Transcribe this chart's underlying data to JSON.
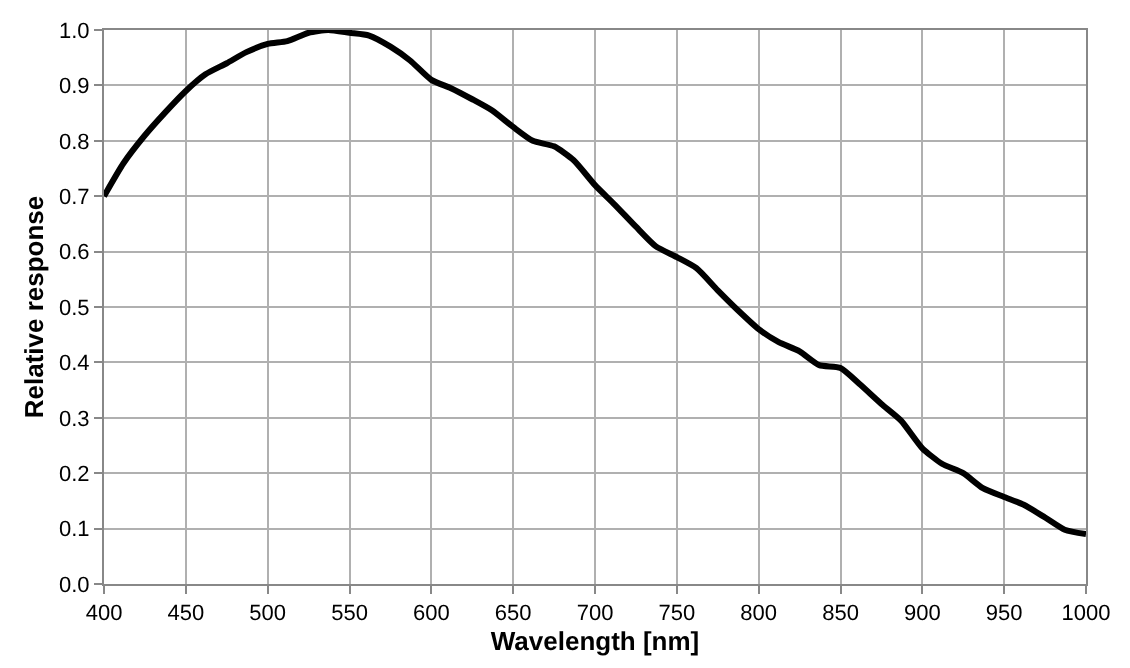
{
  "chart_data": {
    "type": "line",
    "xlabel": "Wavelength [nm]",
    "ylabel": "Relative response",
    "x": [
      400,
      412,
      425,
      437,
      450,
      462,
      475,
      487,
      500,
      512,
      525,
      537,
      550,
      562,
      575,
      587,
      600,
      612,
      625,
      637,
      650,
      662,
      675,
      687,
      700,
      712,
      725,
      737,
      750,
      762,
      775,
      787,
      800,
      812,
      825,
      837,
      850,
      862,
      875,
      887,
      900,
      912,
      925,
      937,
      950,
      962,
      975,
      987,
      1000
    ],
    "series": [
      {
        "color": "#000000",
        "values": [
          0.7,
          0.76,
          0.81,
          0.85,
          0.89,
          0.92,
          0.94,
          0.96,
          0.975,
          0.98,
          0.995,
          1.0,
          0.995,
          0.99,
          0.97,
          0.945,
          0.91,
          0.895,
          0.875,
          0.855,
          0.825,
          0.8,
          0.79,
          0.765,
          0.72,
          0.685,
          0.645,
          0.61,
          0.59,
          0.57,
          0.53,
          0.495,
          0.46,
          0.437,
          0.42,
          0.395,
          0.39,
          0.36,
          0.325,
          0.295,
          0.245,
          0.217,
          0.2,
          0.173,
          0.157,
          0.143,
          0.12,
          0.098,
          0.09
        ]
      }
    ],
    "xlim": [
      400,
      1000
    ],
    "xticks": [
      400,
      450,
      500,
      550,
      600,
      650,
      700,
      750,
      800,
      850,
      900,
      950,
      1000
    ],
    "ylim": [
      0,
      1
    ],
    "yticks": [
      {
        "value": 0,
        "label": "0.0"
      },
      0.1,
      0.2,
      0.3,
      0.4,
      0.5,
      0.6,
      0.7,
      0.8,
      0.9,
      {
        "value": 1,
        "label": "1.0"
      }
    ],
    "grid": true,
    "legend": false,
    "line_style": "solid",
    "marker": "none"
  }
}
